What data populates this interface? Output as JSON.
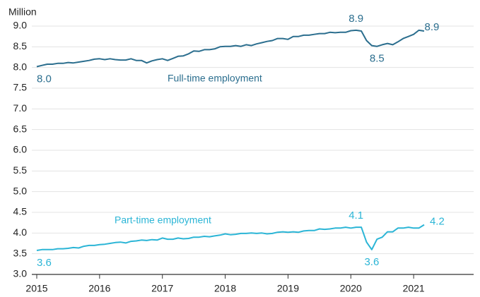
{
  "chart_data": {
    "type": "line",
    "y_label": "Million",
    "annotations": [
      "Full-time employment",
      "Part-time employment"
    ],
    "x": [
      2015,
      2015.083,
      2015.167,
      2015.25,
      2015.333,
      2015.417,
      2015.5,
      2015.583,
      2015.667,
      2015.75,
      2015.833,
      2015.917,
      2016,
      2016.083,
      2016.167,
      2016.25,
      2016.333,
      2016.417,
      2016.5,
      2016.583,
      2016.667,
      2016.75,
      2016.833,
      2016.917,
      2017,
      2017.083,
      2017.167,
      2017.25,
      2017.333,
      2017.417,
      2017.5,
      2017.583,
      2017.667,
      2017.75,
      2017.833,
      2017.917,
      2018,
      2018.083,
      2018.167,
      2018.25,
      2018.333,
      2018.417,
      2018.5,
      2018.583,
      2018.667,
      2018.75,
      2018.833,
      2018.917,
      2019,
      2019.083,
      2019.167,
      2019.25,
      2019.333,
      2019.417,
      2019.5,
      2019.583,
      2019.667,
      2019.75,
      2019.833,
      2019.917,
      2020,
      2020.083,
      2020.167,
      2020.25,
      2020.333,
      2020.417,
      2020.5,
      2020.583,
      2020.667,
      2020.75,
      2020.833,
      2020.917,
      2021,
      2021.083,
      2021.167
    ],
    "series": [
      {
        "name": "Full-time employment",
        "color": "#2b6e8e",
        "values": [
          8.02,
          8.05,
          8.08,
          8.08,
          8.1,
          8.1,
          8.12,
          8.11,
          8.13,
          8.15,
          8.17,
          8.2,
          8.21,
          8.19,
          8.21,
          8.19,
          8.18,
          8.18,
          8.21,
          8.17,
          8.17,
          8.11,
          8.16,
          8.19,
          8.21,
          8.17,
          8.22,
          8.27,
          8.28,
          8.33,
          8.4,
          8.39,
          8.43,
          8.43,
          8.45,
          8.5,
          8.51,
          8.51,
          8.53,
          8.51,
          8.55,
          8.53,
          8.57,
          8.6,
          8.63,
          8.65,
          8.7,
          8.7,
          8.68,
          8.75,
          8.75,
          8.78,
          8.78,
          8.8,
          8.82,
          8.82,
          8.85,
          8.84,
          8.85,
          8.85,
          8.89,
          8.9,
          8.88,
          8.65,
          8.53,
          8.51,
          8.55,
          8.58,
          8.55,
          8.62,
          8.7,
          8.75,
          8.8,
          8.9,
          8.88
        ],
        "value_labels": [
          "8.0",
          null,
          null,
          null,
          null,
          null,
          null,
          null,
          null,
          null,
          null,
          null,
          null,
          null,
          null,
          null,
          null,
          null,
          null,
          null,
          null,
          null,
          null,
          null,
          null,
          null,
          null,
          null,
          null,
          null,
          null,
          null,
          null,
          null,
          null,
          null,
          null,
          null,
          null,
          null,
          null,
          null,
          null,
          null,
          null,
          null,
          null,
          null,
          null,
          null,
          null,
          null,
          null,
          null,
          null,
          null,
          null,
          null,
          null,
          null,
          null,
          "8.9",
          null,
          null,
          null,
          "8.5",
          null,
          null,
          null,
          null,
          null,
          null,
          null,
          "8.9",
          null
        ]
      },
      {
        "name": "Part-time employment",
        "color": "#2bb5d6",
        "values": [
          3.58,
          3.6,
          3.6,
          3.6,
          3.62,
          3.62,
          3.63,
          3.65,
          3.64,
          3.68,
          3.7,
          3.7,
          3.72,
          3.73,
          3.75,
          3.77,
          3.78,
          3.76,
          3.8,
          3.81,
          3.83,
          3.82,
          3.84,
          3.83,
          3.88,
          3.85,
          3.85,
          3.88,
          3.86,
          3.87,
          3.9,
          3.9,
          3.92,
          3.91,
          3.93,
          3.95,
          3.98,
          3.96,
          3.97,
          3.99,
          3.99,
          4.0,
          3.99,
          4.0,
          3.98,
          3.99,
          4.02,
          4.03,
          4.02,
          4.03,
          4.02,
          4.05,
          4.06,
          4.06,
          4.1,
          4.09,
          4.1,
          4.12,
          4.12,
          4.14,
          4.12,
          4.14,
          4.14,
          3.78,
          3.6,
          3.85,
          3.9,
          4.03,
          4.03,
          4.12,
          4.12,
          4.14,
          4.12,
          4.12,
          4.2
        ],
        "value_labels": [
          "3.6",
          null,
          null,
          null,
          null,
          null,
          null,
          null,
          null,
          null,
          null,
          null,
          null,
          null,
          null,
          null,
          null,
          null,
          null,
          null,
          null,
          null,
          null,
          null,
          null,
          null,
          null,
          null,
          null,
          null,
          null,
          null,
          null,
          null,
          null,
          null,
          null,
          null,
          null,
          null,
          null,
          null,
          null,
          null,
          null,
          null,
          null,
          null,
          null,
          null,
          null,
          null,
          null,
          null,
          null,
          null,
          null,
          null,
          null,
          null,
          null,
          "4.1",
          null,
          null,
          "3.6",
          null,
          null,
          null,
          null,
          null,
          null,
          null,
          null,
          null,
          "4.2"
        ]
      }
    ],
    "xlim": [
      2015,
      2022
    ],
    "xticks": [
      2015,
      2016,
      2017,
      2018,
      2019,
      2020,
      2021
    ],
    "ylim": [
      3.0,
      9.0
    ],
    "yticks": [
      {
        "value": 3.0,
        "label": "3.0"
      },
      {
        "value": 3.5,
        "label": "3.5"
      },
      {
        "value": 4.0,
        "label": "4.0"
      },
      {
        "value": 4.5,
        "label": "4.5"
      },
      {
        "value": 5.0,
        "label": "5.0"
      },
      {
        "value": 5.5,
        "label": "5.5"
      },
      {
        "value": 6.0,
        "label": "6.0"
      },
      {
        "value": 6.5,
        "label": "6.5"
      },
      {
        "value": 7.0,
        "label": "7.0"
      },
      {
        "value": 7.5,
        "label": "7.5"
      },
      {
        "value": 8.0,
        "label": "8.0"
      },
      {
        "value": 8.5,
        "label": "8.5"
      },
      {
        "value": 9.0,
        "label": "9.0"
      }
    ],
    "grid": true
  }
}
